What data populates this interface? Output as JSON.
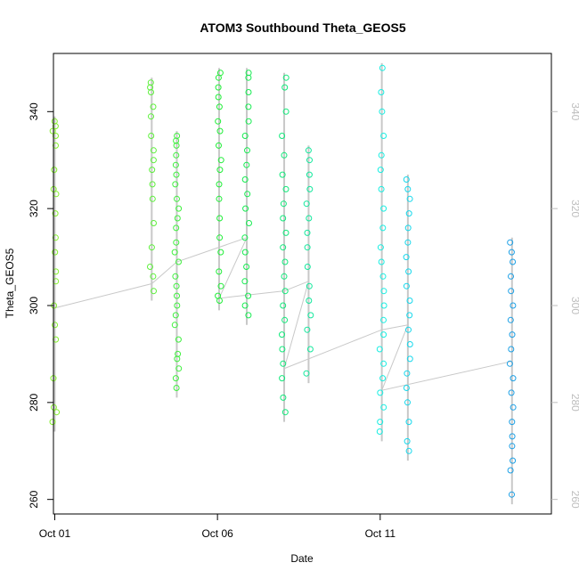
{
  "chart_data": {
    "type": "scatter",
    "title": "ATOM3 Southbound Theta_GEOS5",
    "xlabel": "Date",
    "ylabel": "Theta_GEOS5",
    "xlim": [
      0.96,
      16.26
    ],
    "ylim": [
      257,
      352
    ],
    "x_ticks": [
      {
        "value": 1,
        "label": "Oct 01"
      },
      {
        "value": 6,
        "label": "Oct 06"
      },
      {
        "value": 11,
        "label": "Oct 11"
      }
    ],
    "y_ticks": [
      260,
      280,
      300,
      320,
      340
    ],
    "y_ticks_right": [
      260,
      280,
      300,
      320,
      340
    ],
    "grid": false,
    "legend": "none",
    "series": [
      {
        "color": "#86f030",
        "x": 1.0,
        "points": [
          276,
          278,
          279,
          285,
          293,
          296,
          300,
          305,
          307,
          311,
          314,
          319,
          323,
          324,
          328,
          333,
          335,
          336,
          337,
          338
        ]
      },
      {
        "color": "#5cf03a",
        "x": 3.98,
        "points": [
          303,
          306,
          308,
          312,
          317,
          322,
          325,
          328,
          330,
          332,
          335,
          339,
          341,
          344,
          345,
          346
        ]
      },
      {
        "color": "#3ff03e",
        "x": 4.75,
        "points": [
          283,
          285,
          287,
          289,
          290,
          293,
          296,
          298,
          300,
          302,
          304,
          306,
          309,
          311,
          313,
          316,
          318,
          320,
          322,
          325,
          327,
          329,
          331,
          333,
          334,
          335
        ]
      },
      {
        "color": "#20ee38",
        "x": 6.05,
        "points": [
          301,
          302,
          304,
          307,
          311,
          314,
          318,
          322,
          325,
          328,
          330,
          333,
          336,
          338,
          341,
          343,
          345,
          347,
          348
        ]
      },
      {
        "color": "#15ec50",
        "x": 6.9,
        "points": [
          298,
          300,
          302,
          305,
          308,
          311,
          314,
          317,
          320,
          323,
          326,
          329,
          332,
          335,
          338,
          341,
          344,
          347,
          348
        ]
      },
      {
        "color": "#10ea7a",
        "x": 8.05,
        "points": [
          278,
          281,
          285,
          288,
          291,
          294,
          297,
          300,
          303,
          306,
          309,
          312,
          315,
          318,
          321,
          324,
          327,
          331,
          335,
          340,
          345,
          347
        ]
      },
      {
        "color": "#12e89c",
        "x": 8.8,
        "points": [
          286,
          291,
          295,
          298,
          301,
          304,
          308,
          312,
          315,
          318,
          321,
          324,
          327,
          330,
          332
        ]
      },
      {
        "color": "#18eee2",
        "x": 11.05,
        "points": [
          274,
          276,
          279,
          282,
          285,
          288,
          291,
          294,
          297,
          300,
          303,
          306,
          309,
          312,
          316,
          320,
          324,
          328,
          331,
          335,
          340,
          344,
          349
        ]
      },
      {
        "color": "#16d8ec",
        "x": 11.85,
        "points": [
          270,
          272,
          276,
          280,
          283,
          286,
          289,
          292,
          295,
          298,
          301,
          304,
          307,
          310,
          313,
          316,
          319,
          322,
          324,
          326
        ]
      },
      {
        "color": "#1ca0e6",
        "x": 15.05,
        "points": [
          261,
          266,
          268,
          271,
          273,
          276,
          279,
          282,
          285,
          288,
          291,
          294,
          297,
          300,
          303,
          306,
          309,
          311,
          313
        ]
      }
    ],
    "connector_path": [
      [
        1.0,
        299.5
      ],
      [
        3.98,
        304.5
      ],
      [
        4.75,
        309
      ],
      [
        6.9,
        314
      ],
      [
        6.05,
        301.5
      ],
      [
        8.05,
        303
      ],
      [
        8.8,
        305
      ],
      [
        8.05,
        287
      ],
      [
        11.05,
        295
      ],
      [
        11.85,
        296
      ],
      [
        11.05,
        282.5
      ],
      [
        15.05,
        288.5
      ]
    ],
    "colors": {
      "connector": "#c8c8c8",
      "box": "#000000",
      "right_axis": "#bdbdbd"
    }
  }
}
